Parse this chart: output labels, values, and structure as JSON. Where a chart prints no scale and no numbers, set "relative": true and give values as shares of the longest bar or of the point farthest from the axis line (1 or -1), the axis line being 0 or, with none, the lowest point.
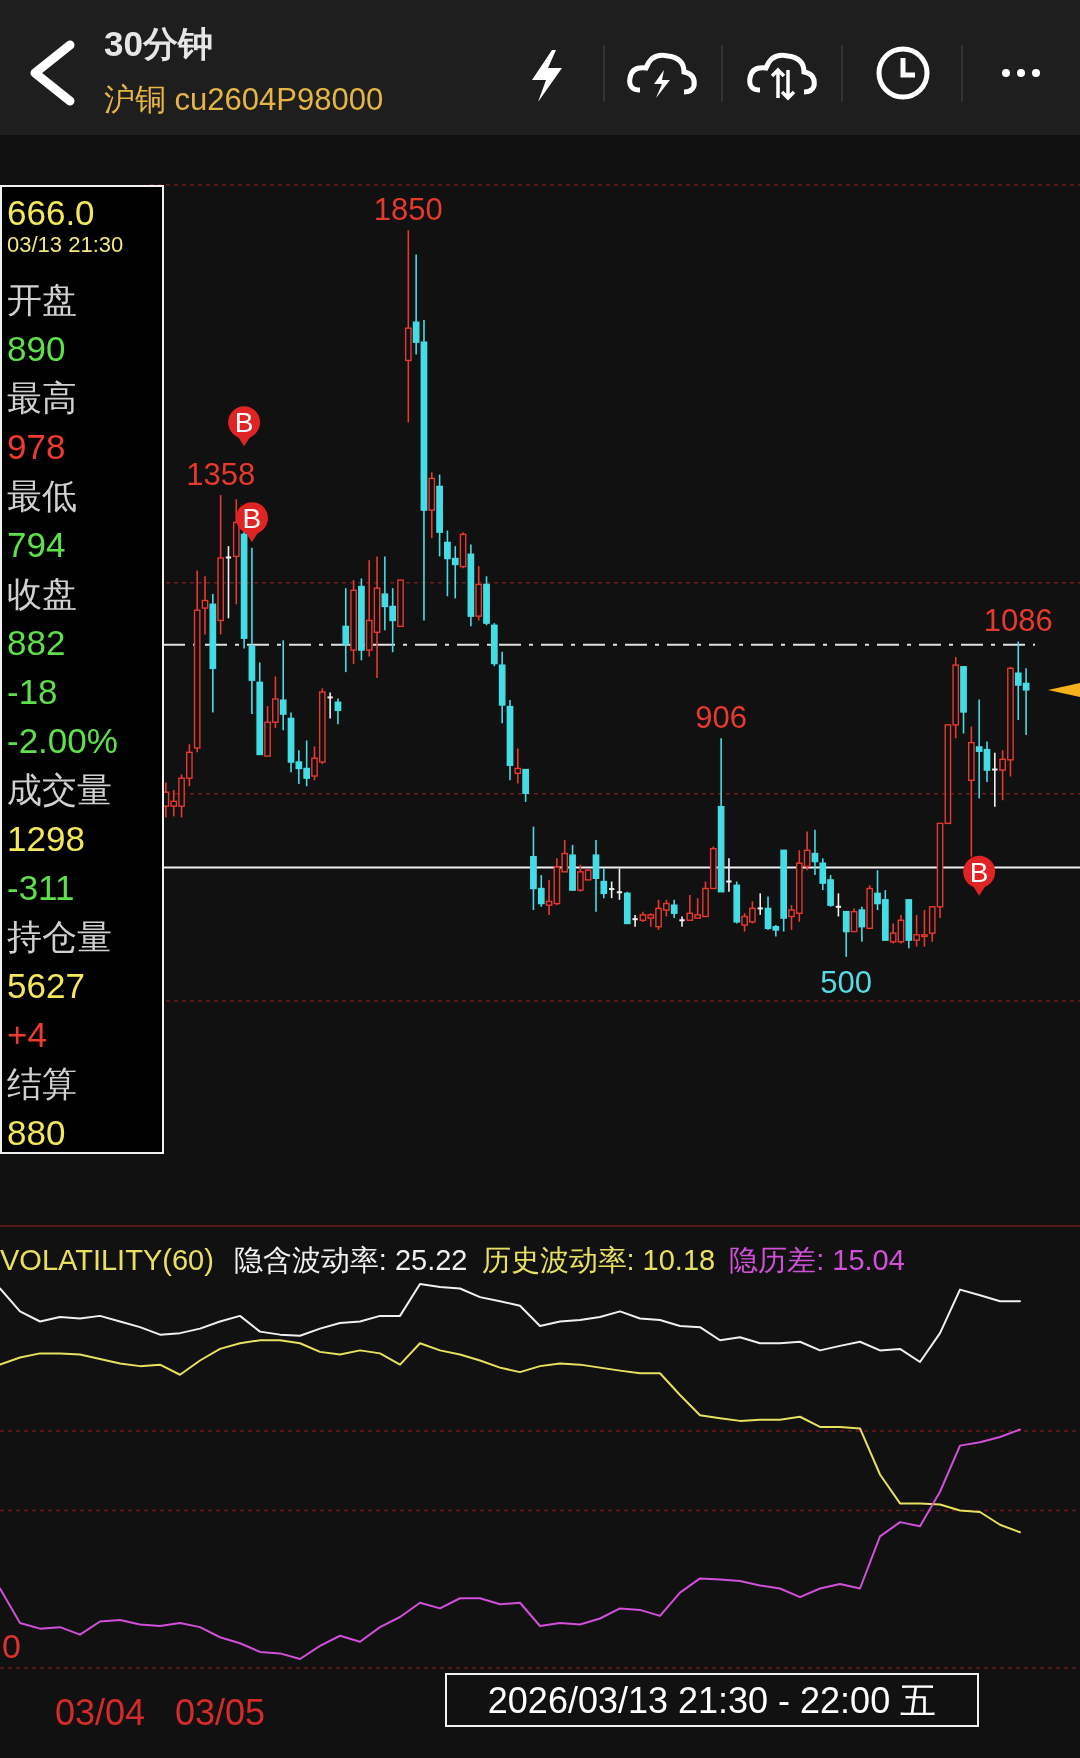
{
  "chart_data": [
    {
      "type": "candlestick",
      "title": "30分钟",
      "subtitle": "沪铜 cu2604P98000",
      "categories": [
        null,
        null,
        null,
        null,
        null,
        null,
        null,
        null,
        null,
        null,
        null,
        null,
        null,
        null,
        null,
        null,
        null,
        null,
        null,
        null,
        null,
        null,
        null,
        null,
        null,
        null,
        null,
        null,
        null,
        null,
        null,
        null,
        null,
        null,
        null,
        null,
        null,
        null,
        null,
        null,
        null,
        null,
        null,
        null,
        null,
        null,
        null,
        null,
        null,
        null,
        null,
        null,
        null,
        null,
        null,
        null,
        null,
        null,
        null,
        null,
        null,
        null,
        null,
        null,
        null,
        null,
        null,
        null,
        null,
        null,
        null,
        null,
        null,
        null,
        null,
        null,
        null,
        null,
        null,
        null,
        null,
        null,
        null,
        null,
        null,
        null,
        null,
        null,
        null,
        null,
        null,
        null,
        null,
        null,
        null,
        null,
        null,
        null,
        null,
        null,
        null,
        null,
        null,
        null,
        null,
        null,
        null,
        null,
        null,
        null,
        null
      ],
      "ohlc": [
        [
          780,
          824,
          759,
          806
        ],
        [
          780,
          810,
          761,
          789
        ],
        [
          780,
          839,
          759,
          832
        ],
        [
          832,
          895,
          817,
          880
        ],
        [
          888,
          1218,
          880,
          1144
        ],
        [
          1148,
          1207,
          1099,
          1162
        ],
        [
          1155,
          1174,
          954,
          1036
        ],
        [
          1125,
          1358,
          1099,
          1241
        ],
        [
          1242,
          1263,
          1129,
          1242
        ],
        [
          1244,
          1350,
          1155,
          1307
        ],
        [
          1285,
          1290,
          1073,
          1092
        ],
        [
          1077,
          1260,
          951,
          1014
        ],
        [
          1010,
          1047,
          876,
          876
        ],
        [
          873,
          966,
          873,
          936
        ],
        [
          936,
          1021,
          925,
          979
        ],
        [
          977,
          1088,
          921,
          951
        ],
        [
          943,
          954,
          843,
          862
        ],
        [
          862,
          884,
          821,
          850
        ],
        [
          850,
          902,
          817,
          832
        ],
        [
          836,
          891,
          828,
          869
        ],
        [
          862,
          999,
          858,
          992
        ],
        [
          982,
          991,
          943,
          982
        ],
        [
          973,
          980,
          932,
          958
        ],
        [
          1114,
          1185,
          1029,
          1081
        ],
        [
          1070,
          1200,
          1044,
          1181
        ],
        [
          1188,
          1203,
          1051,
          1070
        ],
        [
          1070,
          1237,
          1058,
          1125
        ],
        [
          1103,
          1244,
          1018,
          1185
        ],
        [
          1174,
          1244,
          1107,
          1151
        ],
        [
          1151,
          1185,
          1066,
          1125
        ],
        [
          1114,
          1200,
          1114,
          1200
        ],
        [
          1608,
          1850,
          1493,
          1668
        ],
        [
          1679,
          1805,
          1619,
          1642
        ],
        [
          1642,
          1683,
          1125,
          1330
        ],
        [
          1330,
          1400,
          1278,
          1389
        ],
        [
          1374,
          1396,
          1244,
          1289
        ],
        [
          1270,
          1292,
          1170,
          1240
        ],
        [
          1240,
          1263,
          1166,
          1229
        ],
        [
          1225,
          1289,
          1222,
          1285
        ],
        [
          1248,
          1266,
          1114,
          1133
        ],
        [
          1133,
          1226,
          1125,
          1192
        ],
        [
          1192,
          1207,
          1116,
          1120
        ],
        [
          1116,
          1120,
          1040,
          1045
        ],
        [
          1042,
          1067,
          934,
          968
        ],
        [
          965,
          977,
          828,
          856
        ],
        [
          841,
          887,
          822,
          850
        ],
        [
          848,
          848,
          788,
          804
        ],
        [
          686,
          742,
          587,
          627
        ],
        [
          627,
          652,
          593,
          599
        ],
        [
          596,
          643,
          578,
          603
        ],
        [
          599,
          683,
          596,
          667
        ],
        [
          658,
          717,
          658,
          692
        ],
        [
          689,
          708,
          624,
          624
        ],
        [
          624,
          671,
          621,
          658
        ],
        [
          643,
          664,
          643,
          661
        ],
        [
          689,
          717,
          584,
          646
        ],
        [
          640,
          664,
          609,
          618
        ],
        [
          626,
          640,
          609,
          626
        ],
        [
          620,
          664,
          606,
          620
        ],
        [
          618,
          621,
          562,
          562
        ],
        [
          570,
          578,
          556,
          570
        ],
        [
          568,
          584,
          565,
          578
        ],
        [
          572,
          581,
          556,
          578
        ],
        [
          556,
          606,
          550,
          590
        ],
        [
          587,
          606,
          575,
          599
        ],
        [
          596,
          606,
          572,
          581
        ],
        [
          568,
          575,
          556,
          568
        ],
        [
          568,
          615,
          568,
          581
        ],
        [
          572,
          609,
          572,
          578
        ],
        [
          575,
          640,
          575,
          627
        ],
        [
          627,
          705,
          627,
          701
        ],
        [
          779,
          906,
          621,
          621
        ],
        [
          640,
          683,
          621,
          640
        ],
        [
          633,
          640,
          562,
          565
        ],
        [
          559,
          581,
          547,
          575
        ],
        [
          565,
          603,
          562,
          590
        ],
        [
          590,
          618,
          578,
          590
        ],
        [
          590,
          612,
          550,
          553
        ],
        [
          556,
          559,
          538,
          550
        ],
        [
          698,
          698,
          547,
          572
        ],
        [
          575,
          596,
          550,
          587
        ],
        [
          581,
          698,
          565,
          674
        ],
        [
          668,
          733,
          661,
          698
        ],
        [
          692,
          736,
          652,
          677
        ],
        [
          674,
          683,
          624,
          637
        ],
        [
          643,
          652,
          593,
          596
        ],
        [
          593,
          618,
          575,
          593
        ],
        [
          584,
          584,
          500,
          547
        ],
        [
          547,
          590,
          547,
          584
        ],
        [
          587,
          593,
          528,
          556
        ],
        [
          553,
          633,
          553,
          627
        ],
        [
          618,
          661,
          587,
          599
        ],
        [
          606,
          624,
          531,
          531
        ],
        [
          528,
          562,
          525,
          544
        ],
        [
          528,
          578,
          525,
          568
        ],
        [
          606,
          606,
          516,
          531
        ],
        [
          531,
          578,
          519,
          541
        ],
        [
          538,
          587,
          519,
          541
        ],
        [
          544,
          593,
          528,
          593
        ],
        [
          593,
          748,
          572,
          748
        ],
        [
          748,
          931,
          748,
          931
        ],
        [
          931,
          1057,
          906,
          1042
        ],
        [
          1039,
          1039,
          915,
          955
        ],
        [
          828,
          928,
          686,
          898
        ],
        [
          890,
          978,
          794,
          882
        ],
        [
          885,
          900,
          825,
          847
        ],
        [
          848,
          879,
          779,
          848
        ],
        [
          847,
          884,
          791,
          867
        ],
        [
          866,
          1039,
          835,
          1036
        ],
        [
          1027,
          1086,
          940,
          1005
        ],
        [
          1008,
          1036,
          912,
          996
        ]
      ],
      "series": [
        {
          "type": "scatter",
          "color": "#e02424",
          "values": [
            null,
            null,
            null,
            null,
            null,
            null,
            null,
            null,
            null,
            null,
            1493,
            1315,
            null,
            null,
            null,
            null,
            null,
            null,
            null,
            null,
            null,
            null,
            null,
            null,
            null,
            null,
            null,
            null,
            null,
            null,
            null,
            null,
            null,
            null,
            null,
            null,
            null,
            null,
            null,
            null,
            null,
            null,
            null,
            null,
            null,
            null,
            null,
            null,
            null,
            null,
            null,
            null,
            null,
            null,
            null,
            null,
            null,
            null,
            null,
            null,
            null,
            null,
            null,
            null,
            null,
            null,
            null,
            null,
            null,
            null,
            null,
            null,
            null,
            null,
            null,
            null,
            null,
            null,
            null,
            null,
            null,
            null,
            null,
            null,
            null,
            null,
            null,
            null,
            null,
            null,
            null,
            null,
            null,
            null,
            null,
            null,
            null,
            null,
            null,
            null,
            null,
            null,
            null,
            null,
            658,
            null,
            null,
            null,
            null,
            null,
            null
          ]
        }
      ],
      "ylim": [
        418,
        1934
      ],
      "yticks": [
        {
          "value": 418,
          "label": null
        },
        {
          "value": 803,
          "label": null
        },
        {
          "value": 1195,
          "label": null
        },
        {
          "value": 1934,
          "label": null
        }
      ],
      "grid": "y",
      "ref_lines": [
        {
          "axis": "y",
          "value": 1080,
          "line_style": "dashed",
          "color": "#e0e0e0"
        },
        {
          "axis": "y",
          "value": 666,
          "color": "#f0f0f0"
        }
      ],
      "annotations": [
        {
          "text": "1850",
          "y": 1850
        },
        {
          "text": "1358",
          "y": 1358
        },
        {
          "text": "906",
          "y": 906
        },
        {
          "text": "1086",
          "y": 1086
        },
        {
          "text": "500",
          "y": 500
        },
        {
          "text": "B",
          "y": 1493
        },
        {
          "text": "B",
          "y": 1315
        },
        {
          "text": "B",
          "y": 658
        }
      ]
    },
    {
      "type": "other",
      "annotations": [
        "666.0",
        "03/13 21:30",
        "开盘",
        "890",
        "最高",
        "978",
        "最低",
        "794",
        "收盘",
        "882",
        "-18",
        "-2.00%",
        "成交量",
        "1298",
        "-311",
        "持仓量",
        "5627",
        "+4",
        "结算",
        "880"
      ],
      "colors": [
        "#f2e85a",
        "#f0e878",
        "#d0d0d0",
        "#5ee04a",
        "#d0d0d0",
        "#ee3b30",
        "#d0d0d0",
        "#5ee04a",
        "#d0d0d0",
        "#5ee04a",
        "#5ee04a",
        "#5ee04a",
        "#d0d0d0",
        "#f2e85a",
        "#5ee04a",
        "#d0d0d0",
        "#f2e85a",
        "#ee3b30",
        "#d0d0d0",
        "#f2e85a"
      ]
    },
    {
      "type": "line",
      "title": "VOLATILITY(60)",
      "categories": [
        null,
        null,
        null,
        null,
        null,
        "03/04",
        null,
        null,
        null,
        null,
        null,
        "03/05",
        null,
        null,
        null,
        null,
        null,
        null,
        null,
        null,
        null,
        null,
        null,
        null,
        null,
        null,
        null,
        null,
        null,
        null,
        null,
        null,
        null,
        null,
        null,
        null,
        null,
        null,
        null,
        null,
        null,
        null,
        null,
        null,
        null,
        null,
        null,
        null,
        null,
        null,
        null,
        null
      ],
      "series": [
        {
          "name": "隐含波动率: 25.22",
          "color": "#f0f0f0",
          "values": [
            0.988,
            0.927,
            0.9,
            0.912,
            0.908,
            0.915,
            0.9,
            0.885,
            0.865,
            0.869,
            0.881,
            0.9,
            0.915,
            0.873,
            0.865,
            0.862,
            0.881,
            0.896,
            0.9,
            0.915,
            0.915,
            1,
            0.992,
            0.988,
            0.965,
            0.954,
            0.942,
            0.888,
            0.9,
            0.904,
            0.912,
            0.927,
            0.908,
            0.904,
            0.888,
            0.885,
            0.85,
            0.858,
            0.842,
            0.842,
            0.846,
            0.823,
            0.835,
            0.846,
            0.823,
            0.827,
            0.792,
            0.869,
            0.985,
            0.97,
            0.954,
            0.954
          ]
        },
        {
          "name": "历史波动率: 10.18",
          "color": "#e8e060",
          "values": [
            0.785,
            0.804,
            0.815,
            0.815,
            0.812,
            0.8,
            0.788,
            0.781,
            0.785,
            0.758,
            0.796,
            0.827,
            0.842,
            0.85,
            0.85,
            0.842,
            0.819,
            0.812,
            0.823,
            0.815,
            0.785,
            0.842,
            0.823,
            0.812,
            0.796,
            0.777,
            0.765,
            0.781,
            0.788,
            0.785,
            0.777,
            0.769,
            0.762,
            0.762,
            0.704,
            0.65,
            0.642,
            0.635,
            0.638,
            0.638,
            0.646,
            0.619,
            0.619,
            0.615,
            0.492,
            0.415,
            0.415,
            0.412,
            0.396,
            0.392,
            0.358,
            0.338
          ]
        },
        {
          "name": "隐历差: 15.04",
          "color": "#d050d8",
          "values": [
            0.188,
            0.096,
            0.081,
            0.085,
            0.065,
            0.1,
            0.104,
            0.092,
            0.088,
            0.096,
            0.085,
            0.058,
            0.042,
            0.019,
            0.015,
            0,
            0.035,
            0.062,
            0.046,
            0.085,
            0.112,
            0.15,
            0.135,
            0.162,
            0.162,
            0.146,
            0.15,
            0.088,
            0.096,
            0.092,
            0.108,
            0.135,
            0.131,
            0.115,
            0.177,
            0.215,
            0.212,
            0.208,
            0.196,
            0.188,
            0.165,
            0.188,
            0.2,
            0.188,
            0.327,
            0.365,
            0.354,
            0.446,
            0.569,
            0.578,
            0.592,
            0.612
          ]
        }
      ],
      "relative": true,
      "ref_lines": [
        {
          "axis": "y",
          "value": 0.396,
          "line_style": "dashed",
          "color": "#6e1d1d"
        },
        {
          "axis": "y",
          "value": 0.608,
          "line_style": "dashed",
          "color": "#6e1d1d"
        }
      ],
      "legend": "top",
      "annotations": [
        "2026/03/13 21:30 - 22:00 五",
        "0"
      ]
    }
  ]
}
